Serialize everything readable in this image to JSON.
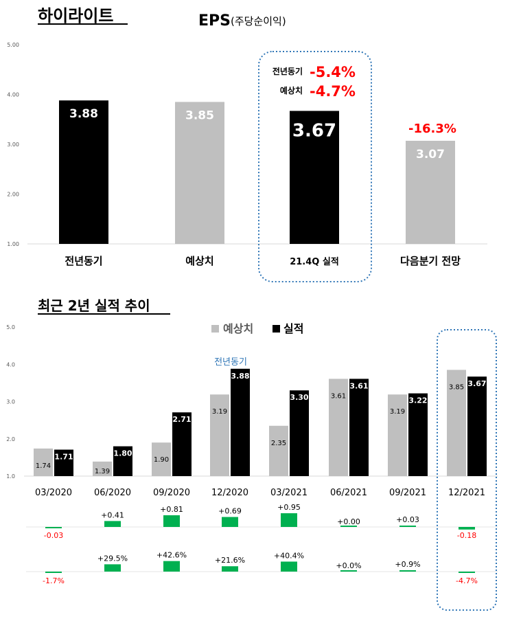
{
  "colors": {
    "actual": "#000000",
    "estimate": "#bfbfbf",
    "negative": "#ff0000",
    "diff_bar": "#00b050",
    "highlight": "#2e75b6",
    "axis": "#d9d9d9",
    "tick": "#595959"
  },
  "chart_data": [
    {
      "type": "bar",
      "heading": "하이라이트",
      "title_main": "EPS",
      "title_sub": "(주당순이익)",
      "ylim": [
        1.0,
        5.0
      ],
      "yticks": [
        "1.00",
        "2.00",
        "3.00",
        "4.00",
        "5.00"
      ],
      "categories": [
        "전년동기",
        "예상치",
        "21.4Q 실적",
        "다음분기 전망"
      ],
      "values": [
        3.88,
        3.85,
        3.67,
        3.07
      ],
      "value_labels": [
        "3.88",
        "3.85",
        "3.67",
        "3.07"
      ],
      "bar_colors": [
        "actual",
        "estimate",
        "actual",
        "estimate"
      ],
      "annotations": [
        {
          "label": "전년동기",
          "value": "-5.4%"
        },
        {
          "label": "예상치",
          "value": "-4.7%"
        },
        {
          "label": "",
          "value": "-16.3%"
        }
      ]
    },
    {
      "type": "bar",
      "heading": "최근 2년 실적 추이",
      "ylim": [
        1.0,
        5.0
      ],
      "yticks": [
        "1.0",
        "2.0",
        "3.0",
        "4.0",
        "5.0"
      ],
      "legend": [
        "예상치",
        "실적"
      ],
      "legend_position": "top-center",
      "annotation": "전년동기",
      "categories": [
        "03/2020",
        "06/2020",
        "09/2020",
        "12/2020",
        "03/2021",
        "06/2021",
        "09/2021",
        "12/2021"
      ],
      "series": [
        {
          "name": "예상치",
          "values": [
            1.74,
            1.39,
            1.9,
            3.19,
            2.35,
            3.61,
            3.19,
            3.85
          ],
          "labels": [
            "1.74",
            "1.39",
            "1.90",
            "3.19",
            "2.35",
            "3.61",
            "3.19",
            "3.85"
          ]
        },
        {
          "name": "실적",
          "values": [
            1.71,
            1.8,
            2.71,
            3.88,
            3.3,
            3.61,
            3.22,
            3.67
          ],
          "labels": [
            "1.71",
            "1.80",
            "2.71",
            "3.88",
            "3.30",
            "3.61",
            "3.22",
            "3.67"
          ]
        }
      ],
      "surprise": {
        "values": [
          -0.03,
          0.41,
          0.81,
          0.69,
          0.95,
          0.0,
          0.03,
          -0.18
        ],
        "labels": [
          "-0.03",
          "+0.41",
          "+0.81",
          "+0.69",
          "+0.95",
          "+0.00",
          "+0.03",
          "-0.18"
        ]
      },
      "surprise_pct": {
        "values": [
          -1.7,
          29.5,
          42.6,
          21.6,
          40.4,
          0.0,
          0.9,
          -4.7
        ],
        "labels": [
          "-1.7%",
          "+29.5%",
          "+42.6%",
          "+21.6%",
          "+40.4%",
          "+0.0%",
          "+0.9%",
          "-4.7%"
        ]
      }
    }
  ]
}
